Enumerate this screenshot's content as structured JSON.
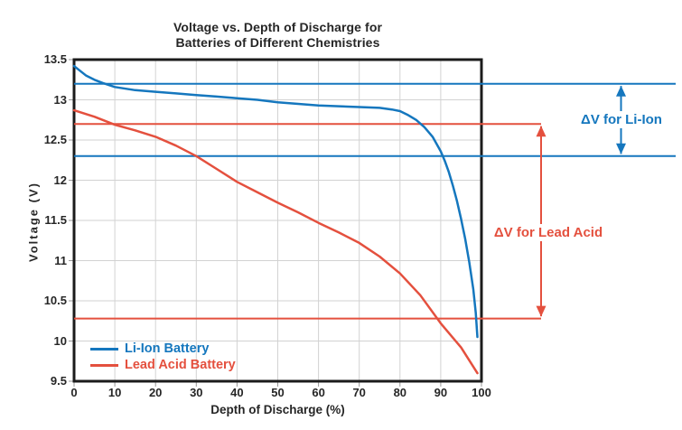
{
  "title": {
    "line1": "Voltage vs. Depth of Discharge for",
    "line2": "Batteries of Different Chemistries"
  },
  "colors": {
    "li_ion_blue": "#1577BE",
    "lead_acid_red": "#E4503E",
    "grid": "#D2D2D2",
    "plot_border": "#1B1B1B",
    "text": "#262626",
    "tick": "#9A9A9A"
  },
  "chart_data": {
    "type": "line",
    "title": "Voltage vs. Depth of Discharge for Batteries of Different Chemistries",
    "xlabel": "Depth of Discharge (%)",
    "ylabel": "Voltage (V)",
    "xlim": [
      0,
      100
    ],
    "ylim": [
      9.5,
      13.5
    ],
    "xticks": [
      0,
      10,
      20,
      30,
      40,
      50,
      60,
      70,
      80,
      90,
      100
    ],
    "yticks": [
      9.5,
      10,
      10.5,
      11,
      11.5,
      12,
      12.5,
      13,
      13.5
    ],
    "grid": true,
    "legend_position": "lower-left",
    "series": [
      {
        "name": "Li-Ion Battery",
        "color": "#1577BE",
        "points": [
          [
            0,
            13.42
          ],
          [
            1,
            13.38
          ],
          [
            3,
            13.3
          ],
          [
            5,
            13.25
          ],
          [
            7,
            13.21
          ],
          [
            10,
            13.16
          ],
          [
            15,
            13.12
          ],
          [
            20,
            13.1
          ],
          [
            25,
            13.08
          ],
          [
            30,
            13.06
          ],
          [
            35,
            13.04
          ],
          [
            40,
            13.02
          ],
          [
            45,
            13.0
          ],
          [
            50,
            12.97
          ],
          [
            55,
            12.95
          ],
          [
            60,
            12.93
          ],
          [
            65,
            12.92
          ],
          [
            70,
            12.91
          ],
          [
            75,
            12.9
          ],
          [
            78,
            12.88
          ],
          [
            80,
            12.86
          ],
          [
            82,
            12.81
          ],
          [
            84,
            12.75
          ],
          [
            86,
            12.66
          ],
          [
            88,
            12.54
          ],
          [
            90,
            12.36
          ],
          [
            91,
            12.24
          ],
          [
            92,
            12.1
          ],
          [
            93,
            11.93
          ],
          [
            94,
            11.74
          ],
          [
            95,
            11.52
          ],
          [
            96,
            11.27
          ],
          [
            97,
            10.98
          ],
          [
            98,
            10.64
          ],
          [
            98.6,
            10.35
          ],
          [
            99,
            10.05
          ]
        ]
      },
      {
        "name": "Lead Acid Battery",
        "color": "#E4503E",
        "points": [
          [
            0,
            12.87
          ],
          [
            5,
            12.79
          ],
          [
            10,
            12.69
          ],
          [
            15,
            12.62
          ],
          [
            20,
            12.54
          ],
          [
            25,
            12.43
          ],
          [
            30,
            12.3
          ],
          [
            35,
            12.14
          ],
          [
            40,
            11.98
          ],
          [
            45,
            11.85
          ],
          [
            50,
            11.72
          ],
          [
            55,
            11.6
          ],
          [
            60,
            11.47
          ],
          [
            65,
            11.35
          ],
          [
            70,
            11.22
          ],
          [
            75,
            11.05
          ],
          [
            80,
            10.84
          ],
          [
            85,
            10.57
          ],
          [
            90,
            10.22
          ],
          [
            95,
            9.92
          ],
          [
            99,
            9.6
          ]
        ]
      }
    ],
    "reference_lines": [
      {
        "label": "ΔV for Li-Ion",
        "color": "#1577BE",
        "top_v": 13.2,
        "bottom_v": 12.3
      },
      {
        "label": "ΔV for Lead Acid",
        "color": "#E4503E",
        "top_v": 12.7,
        "bottom_v": 10.28
      }
    ]
  }
}
